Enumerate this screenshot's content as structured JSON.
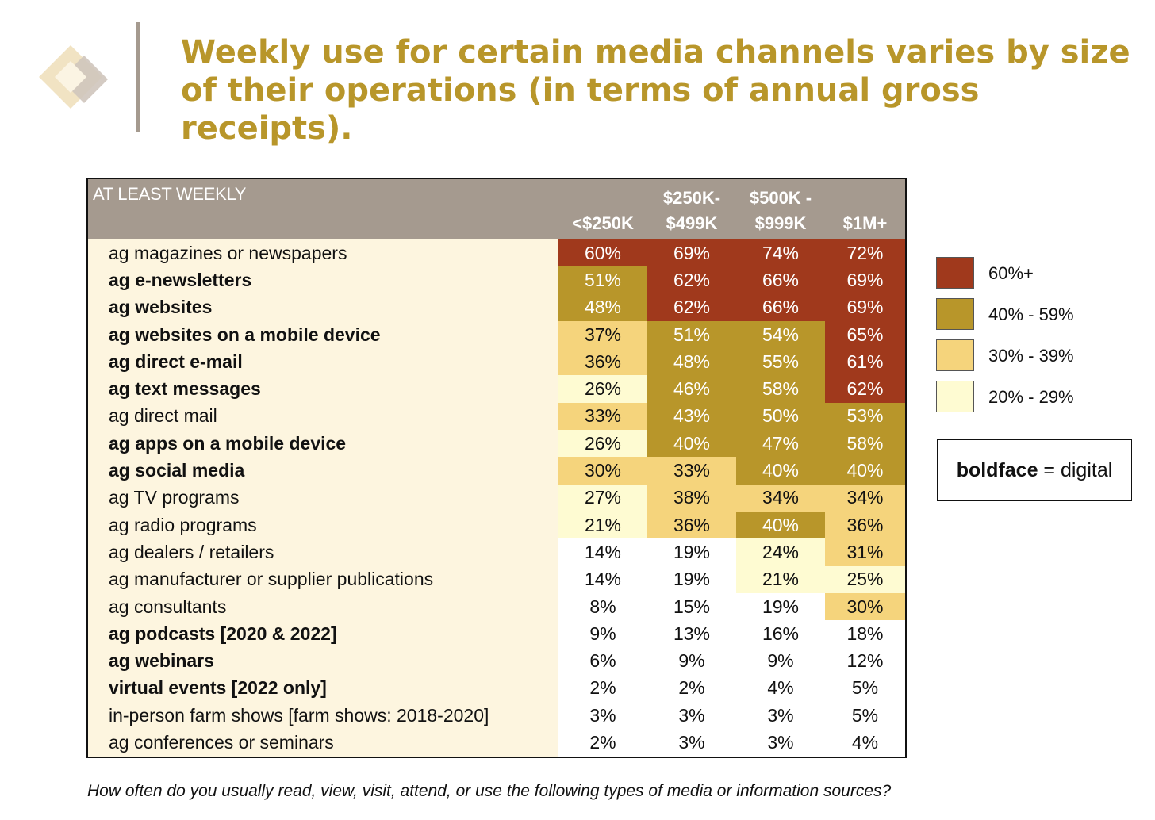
{
  "title": "Weekly use for certain media channels varies by size of their operations (in terms of annual gross receipts).",
  "table": {
    "corner_label": "AT LEAST WEEKLY",
    "columns": [
      {
        "line1": "",
        "line2": "<$250K"
      },
      {
        "line1": "$250K-",
        "line2": "$499K"
      },
      {
        "line1": "$500K -",
        "line2": "$999K"
      },
      {
        "line1": "",
        "line2": "$1M+"
      }
    ]
  },
  "legend": [
    {
      "label": "60%+",
      "color": "#a0391c"
    },
    {
      "label": "40% - 59%",
      "color": "#b8962a"
    },
    {
      "label": "30% - 39%",
      "color": "#f5d47c"
    },
    {
      "label": "20% - 29%",
      "color": "#fefbd2"
    }
  ],
  "note": {
    "bold_word": "boldface",
    "rest": " = digital"
  },
  "question": "How often do you usually read, view, visit, attend, or use the following types of media or information sources?",
  "chart_data": {
    "type": "table",
    "columns": [
      "<$250K",
      "$250K-$499K",
      "$500K - $999K",
      "$1M+"
    ],
    "rows": [
      {
        "label": "ag magazines or newspapers",
        "digital": false,
        "values": [
          "60%",
          "69%",
          "74%",
          "72%"
        ]
      },
      {
        "label": "ag e-newsletters",
        "digital": true,
        "values": [
          "51%",
          "62%",
          "66%",
          "69%"
        ]
      },
      {
        "label": "ag websites",
        "digital": true,
        "values": [
          "48%",
          "62%",
          "66%",
          "69%"
        ]
      },
      {
        "label": "ag websites on a mobile device",
        "digital": true,
        "values": [
          "37%",
          "51%",
          "54%",
          "65%"
        ]
      },
      {
        "label": "ag direct e-mail",
        "digital": true,
        "values": [
          "36%",
          "48%",
          "55%",
          "61%"
        ]
      },
      {
        "label": "ag text messages",
        "digital": true,
        "values": [
          "26%",
          "46%",
          "58%",
          "62%"
        ]
      },
      {
        "label": "ag direct mail",
        "digital": false,
        "values": [
          "33%",
          "43%",
          "50%",
          "53%"
        ]
      },
      {
        "label": "ag apps on a mobile device",
        "digital": true,
        "values": [
          "26%",
          "40%",
          "47%",
          "58%"
        ]
      },
      {
        "label": "ag social media",
        "digital": true,
        "values": [
          "30%",
          "33%",
          "40%",
          "40%"
        ]
      },
      {
        "label": "ag TV programs",
        "digital": false,
        "values": [
          "27%",
          "38%",
          "34%",
          "34%"
        ]
      },
      {
        "label": "ag radio programs",
        "digital": false,
        "values": [
          "21%",
          "36%",
          "40%",
          "36%"
        ]
      },
      {
        "label": "ag dealers / retailers",
        "digital": false,
        "values": [
          "14%",
          "19%",
          "24%",
          "31%"
        ]
      },
      {
        "label": "ag manufacturer or supplier publications",
        "digital": false,
        "values": [
          "14%",
          "19%",
          "21%",
          "25%"
        ]
      },
      {
        "label": "ag consultants",
        "digital": false,
        "values": [
          "8%",
          "15%",
          "19%",
          "30%"
        ]
      },
      {
        "label": "ag podcasts [2020 & 2022]",
        "digital": true,
        "values": [
          "9%",
          "13%",
          "16%",
          "18%"
        ]
      },
      {
        "label": "ag webinars",
        "digital": true,
        "values": [
          "6%",
          "9%",
          "9%",
          "12%"
        ]
      },
      {
        "label": "virtual events [2022 only]",
        "digital": true,
        "values": [
          "2%",
          "2%",
          "4%",
          "5%"
        ]
      },
      {
        "label": "in-person farm shows [farm shows: 2018-2020]",
        "digital": false,
        "values": [
          "3%",
          "3%",
          "3%",
          "5%"
        ]
      },
      {
        "label": "ag conferences or seminars",
        "digital": false,
        "values": [
          "2%",
          "3%",
          "3%",
          "4%"
        ]
      }
    ]
  }
}
